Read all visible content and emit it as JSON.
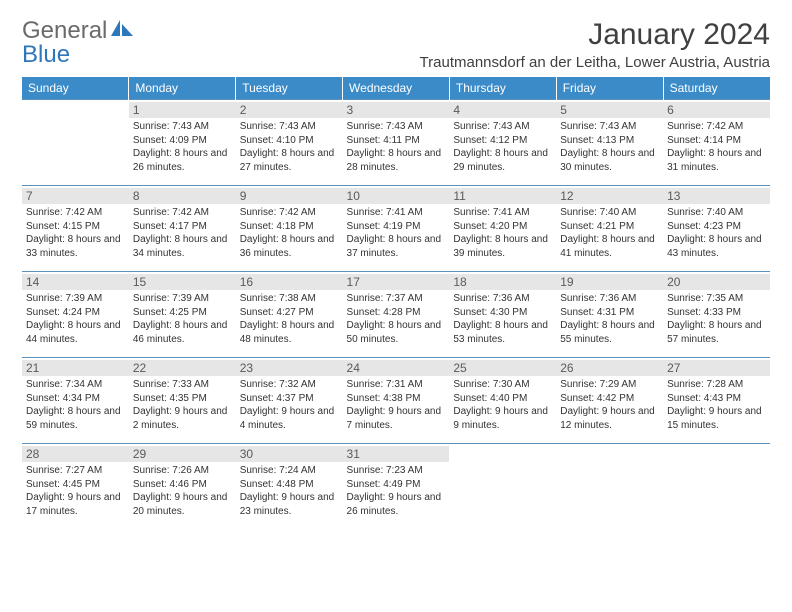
{
  "brand": {
    "t1": "General",
    "t2": "Blue"
  },
  "title": "January 2024",
  "subtitle": "Trautmannsdorf an der Leitha, Lower Austria, Austria",
  "colors": {
    "header_bg": "#3b8bc9",
    "header_text": "#ffffff",
    "row_border": "#5b92bd",
    "daynum_bg": "#e6e6e6",
    "brand_gray": "#6a6a6a",
    "brand_blue": "#2e77bb"
  },
  "typography": {
    "title_fontsize": 30,
    "subtitle_fontsize": 15,
    "header_fontsize": 12,
    "daynum_fontsize": 12,
    "detail_fontsize": 10
  },
  "weekdays": [
    "Sunday",
    "Monday",
    "Tuesday",
    "Wednesday",
    "Thursday",
    "Friday",
    "Saturday"
  ],
  "weeks": [
    [
      null,
      {
        "n": "1",
        "sr": "7:43 AM",
        "ss": "4:09 PM",
        "dl": "8 hours and 26 minutes."
      },
      {
        "n": "2",
        "sr": "7:43 AM",
        "ss": "4:10 PM",
        "dl": "8 hours and 27 minutes."
      },
      {
        "n": "3",
        "sr": "7:43 AM",
        "ss": "4:11 PM",
        "dl": "8 hours and 28 minutes."
      },
      {
        "n": "4",
        "sr": "7:43 AM",
        "ss": "4:12 PM",
        "dl": "8 hours and 29 minutes."
      },
      {
        "n": "5",
        "sr": "7:43 AM",
        "ss": "4:13 PM",
        "dl": "8 hours and 30 minutes."
      },
      {
        "n": "6",
        "sr": "7:42 AM",
        "ss": "4:14 PM",
        "dl": "8 hours and 31 minutes."
      }
    ],
    [
      {
        "n": "7",
        "sr": "7:42 AM",
        "ss": "4:15 PM",
        "dl": "8 hours and 33 minutes."
      },
      {
        "n": "8",
        "sr": "7:42 AM",
        "ss": "4:17 PM",
        "dl": "8 hours and 34 minutes."
      },
      {
        "n": "9",
        "sr": "7:42 AM",
        "ss": "4:18 PM",
        "dl": "8 hours and 36 minutes."
      },
      {
        "n": "10",
        "sr": "7:41 AM",
        "ss": "4:19 PM",
        "dl": "8 hours and 37 minutes."
      },
      {
        "n": "11",
        "sr": "7:41 AM",
        "ss": "4:20 PM",
        "dl": "8 hours and 39 minutes."
      },
      {
        "n": "12",
        "sr": "7:40 AM",
        "ss": "4:21 PM",
        "dl": "8 hours and 41 minutes."
      },
      {
        "n": "13",
        "sr": "7:40 AM",
        "ss": "4:23 PM",
        "dl": "8 hours and 43 minutes."
      }
    ],
    [
      {
        "n": "14",
        "sr": "7:39 AM",
        "ss": "4:24 PM",
        "dl": "8 hours and 44 minutes."
      },
      {
        "n": "15",
        "sr": "7:39 AM",
        "ss": "4:25 PM",
        "dl": "8 hours and 46 minutes."
      },
      {
        "n": "16",
        "sr": "7:38 AM",
        "ss": "4:27 PM",
        "dl": "8 hours and 48 minutes."
      },
      {
        "n": "17",
        "sr": "7:37 AM",
        "ss": "4:28 PM",
        "dl": "8 hours and 50 minutes."
      },
      {
        "n": "18",
        "sr": "7:36 AM",
        "ss": "4:30 PM",
        "dl": "8 hours and 53 minutes."
      },
      {
        "n": "19",
        "sr": "7:36 AM",
        "ss": "4:31 PM",
        "dl": "8 hours and 55 minutes."
      },
      {
        "n": "20",
        "sr": "7:35 AM",
        "ss": "4:33 PM",
        "dl": "8 hours and 57 minutes."
      }
    ],
    [
      {
        "n": "21",
        "sr": "7:34 AM",
        "ss": "4:34 PM",
        "dl": "8 hours and 59 minutes."
      },
      {
        "n": "22",
        "sr": "7:33 AM",
        "ss": "4:35 PM",
        "dl": "9 hours and 2 minutes."
      },
      {
        "n": "23",
        "sr": "7:32 AM",
        "ss": "4:37 PM",
        "dl": "9 hours and 4 minutes."
      },
      {
        "n": "24",
        "sr": "7:31 AM",
        "ss": "4:38 PM",
        "dl": "9 hours and 7 minutes."
      },
      {
        "n": "25",
        "sr": "7:30 AM",
        "ss": "4:40 PM",
        "dl": "9 hours and 9 minutes."
      },
      {
        "n": "26",
        "sr": "7:29 AM",
        "ss": "4:42 PM",
        "dl": "9 hours and 12 minutes."
      },
      {
        "n": "27",
        "sr": "7:28 AM",
        "ss": "4:43 PM",
        "dl": "9 hours and 15 minutes."
      }
    ],
    [
      {
        "n": "28",
        "sr": "7:27 AM",
        "ss": "4:45 PM",
        "dl": "9 hours and 17 minutes."
      },
      {
        "n": "29",
        "sr": "7:26 AM",
        "ss": "4:46 PM",
        "dl": "9 hours and 20 minutes."
      },
      {
        "n": "30",
        "sr": "7:24 AM",
        "ss": "4:48 PM",
        "dl": "9 hours and 23 minutes."
      },
      {
        "n": "31",
        "sr": "7:23 AM",
        "ss": "4:49 PM",
        "dl": "9 hours and 26 minutes."
      },
      null,
      null,
      null
    ]
  ],
  "labels": {
    "sunrise": "Sunrise: ",
    "sunset": "Sunset: ",
    "daylight": "Daylight: "
  }
}
